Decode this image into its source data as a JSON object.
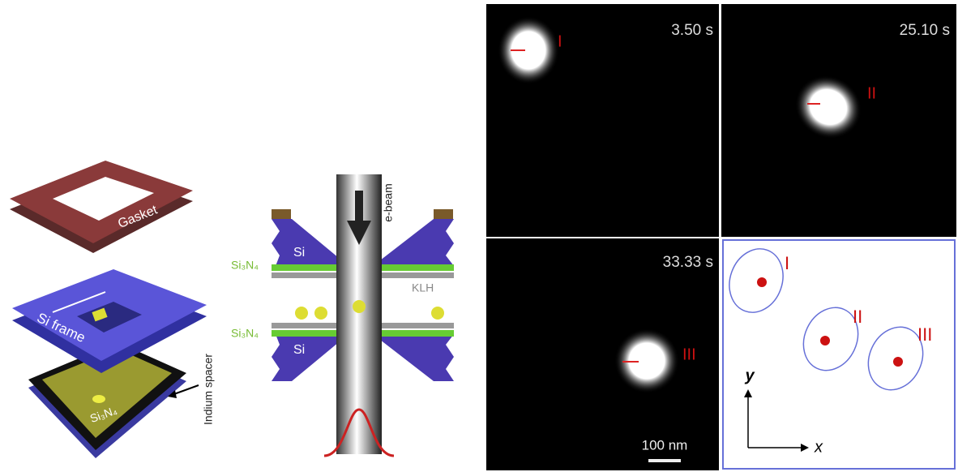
{
  "device": {
    "gasket": "Gasket",
    "frame": "Si frame",
    "chip": "Si₃N₄",
    "spacer": "Indium spacer"
  },
  "cross_section": {
    "beam": "e-beam",
    "si_top": "Si",
    "si_bottom": "Si",
    "membrane_top": "Si₃N₄",
    "membrane_bottom": "Si₃N₄",
    "sample": "KLH"
  },
  "frames": [
    {
      "time": "3.50 s",
      "label": "I"
    },
    {
      "time": "25.10 s",
      "label": "II"
    },
    {
      "time": "33.33 s",
      "label": "III"
    }
  ],
  "scale_bar": "100 nm",
  "trajectory": {
    "labels": [
      "I",
      "II",
      "III"
    ],
    "y_axis": "y",
    "x_axis": "x"
  }
}
